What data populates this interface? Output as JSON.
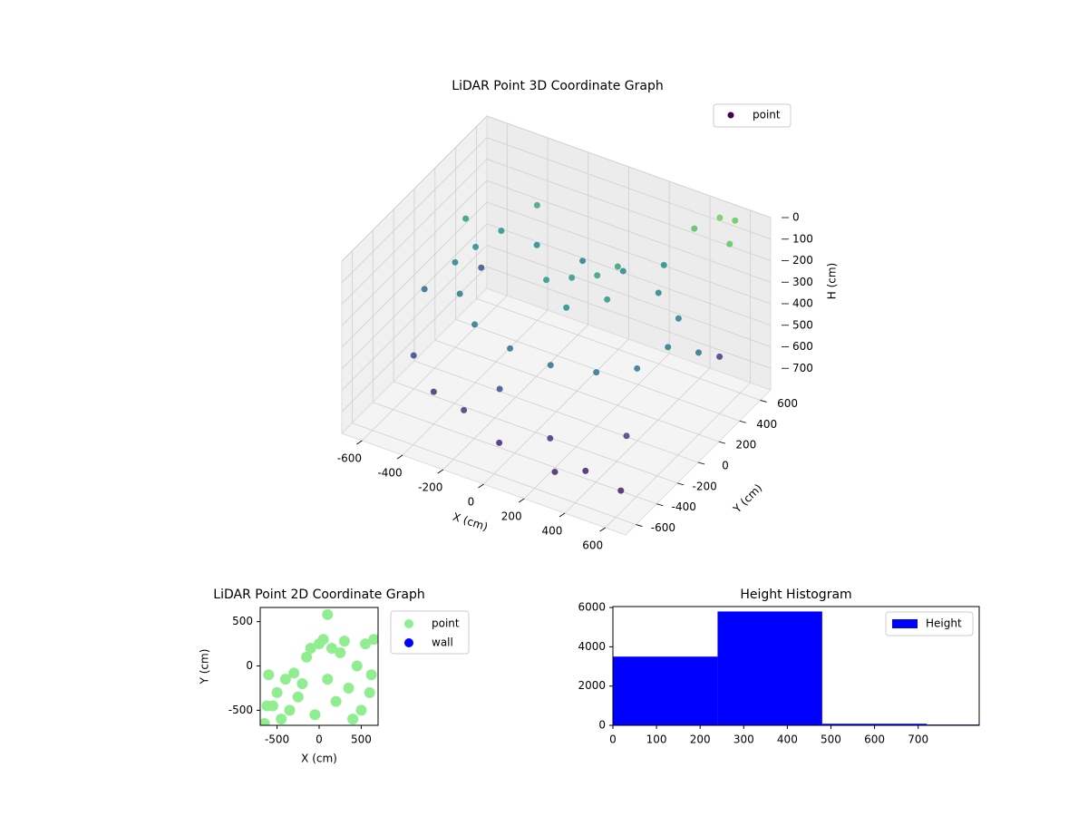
{
  "chart_data": [
    {
      "type": "scatter3d",
      "title": "LiDAR Point 3D Coordinate Graph",
      "xlabel": "X (cm)",
      "ylabel": "Y (cm)",
      "zlabel": "H (cm)",
      "xlim": [
        -700,
        700
      ],
      "ylim": [
        -700,
        700
      ],
      "zlim": [
        0,
        800
      ],
      "z_inverted": true,
      "colormap": "viridis",
      "xticks": [
        -600,
        -400,
        -200,
        0,
        200,
        400,
        600
      ],
      "yticks": [
        -600,
        -400,
        -200,
        0,
        200,
        400,
        600
      ],
      "zticks": [
        0,
        100,
        200,
        300,
        400,
        500,
        600,
        700
      ],
      "series": [
        {
          "name": "point",
          "x": [
            -500,
            -450,
            -300,
            -100,
            100,
            300,
            450,
            500,
            450,
            300,
            100,
            -100,
            -300,
            -450,
            -550,
            0,
            100,
            -100,
            200,
            50,
            150,
            -400,
            -200,
            0,
            200,
            400,
            500,
            -550,
            300,
            -100,
            550,
            -600,
            600,
            500,
            550,
            400,
            600,
            -600,
            -650,
            250,
            -350,
            600
          ],
          "y": [
            200,
            350,
            400,
            450,
            450,
            400,
            300,
            100,
            -100,
            -200,
            -250,
            -250,
            -200,
            -50,
            100,
            150,
            200,
            100,
            100,
            0,
            300,
            -400,
            -500,
            -550,
            -450,
            -500,
            -300,
            -300,
            -600,
            -350,
            500,
            450,
            -550,
            600,
            650,
            550,
            500,
            300,
            0,
            550,
            500,
            200
          ],
          "z": [
            300,
            280,
            320,
            350,
            330,
            340,
            360,
            380,
            400,
            420,
            430,
            420,
            400,
            380,
            340,
            250,
            230,
            270,
            260,
            300,
            220,
            650,
            620,
            680,
            640,
            700,
            600,
            580,
            690,
            560,
            600,
            550,
            700,
            20,
            40,
            80,
            60,
            250,
            450,
            300,
            200,
            420
          ]
        }
      ],
      "legend": "upper right"
    },
    {
      "type": "scatter",
      "title": "LiDAR Point 2D Coordinate Graph",
      "xlabel": "X (cm)",
      "ylabel": "Y (cm)",
      "xlim": [
        -700,
        700
      ],
      "ylim": [
        -670,
        660
      ],
      "xticks": [
        -500,
        0,
        500
      ],
      "yticks": [
        -500,
        0,
        500
      ],
      "series": [
        {
          "name": "point",
          "color": "#90ee90",
          "x": [
            -650,
            -600,
            -550,
            -500,
            -450,
            -400,
            -350,
            -300,
            -250,
            -200,
            -150,
            -100,
            -50,
            0,
            50,
            100,
            150,
            200,
            250,
            300,
            350,
            400,
            450,
            500,
            550,
            600,
            650,
            100,
            -620,
            620
          ],
          "y": [
            -650,
            -100,
            -450,
            -300,
            -600,
            -150,
            -500,
            -80,
            -350,
            -200,
            100,
            200,
            -550,
            250,
            300,
            580,
            200,
            -400,
            150,
            280,
            -250,
            -600,
            0,
            -500,
            250,
            -300,
            300,
            -150,
            -450,
            -100
          ]
        },
        {
          "name": "wall",
          "color": "#0000ff",
          "x": [],
          "y": []
        }
      ],
      "legend": "outside right"
    },
    {
      "type": "histogram",
      "title": "Height Histogram",
      "bins": [
        0,
        240,
        480,
        720,
        960
      ],
      "values": [
        3500,
        5800,
        80,
        40
      ],
      "name": "Height",
      "color": "#0000ff",
      "xlim": [
        0,
        840
      ],
      "ylim": [
        0,
        6050
      ],
      "xticks": [
        0,
        100,
        200,
        300,
        400,
        500,
        600,
        700
      ],
      "yticks": [
        0,
        2000,
        4000,
        6000
      ],
      "legend": "upper right"
    }
  ]
}
